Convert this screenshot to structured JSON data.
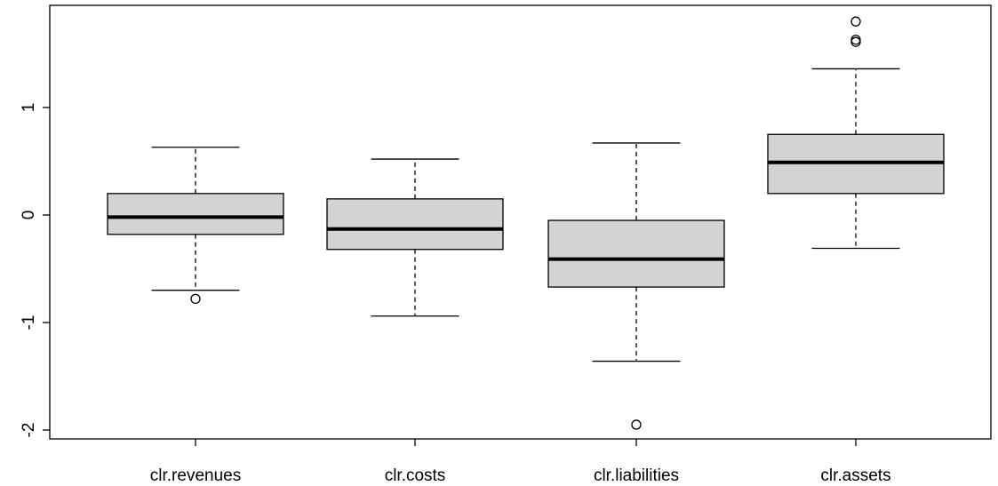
{
  "chart_data": {
    "type": "boxplot",
    "title": "",
    "xlabel": "",
    "ylabel": "",
    "categories": [
      "clr.revenues",
      "clr.costs",
      "clr.liabilities",
      "clr.assets"
    ],
    "boxes": [
      {
        "category": "clr.revenues",
        "whisker_low": -0.7,
        "q1": -0.18,
        "median": -0.02,
        "q3": 0.2,
        "whisker_high": 0.63,
        "outliers": [
          -0.78
        ]
      },
      {
        "category": "clr.costs",
        "whisker_low": -0.94,
        "q1": -0.32,
        "median": -0.13,
        "q3": 0.15,
        "whisker_high": 0.52,
        "outliers": []
      },
      {
        "category": "clr.liabilities",
        "whisker_low": -1.36,
        "q1": -0.67,
        "median": -0.41,
        "q3": -0.05,
        "whisker_high": 0.67,
        "outliers": [
          -1.95
        ]
      },
      {
        "category": "clr.assets",
        "whisker_low": -0.31,
        "q1": 0.2,
        "median": 0.49,
        "q3": 0.75,
        "whisker_high": 1.36,
        "outliers": [
          1.61,
          1.63,
          1.8
        ]
      }
    ],
    "yticks": [
      -2,
      -1,
      0,
      1
    ],
    "ytick_labels": [
      "-2",
      "-1",
      "0",
      "1"
    ],
    "ylim": [
      -2.08,
      1.95
    ],
    "box_fill": "#d3d3d3",
    "line_color": "#000000",
    "grid": false,
    "legend": "none"
  }
}
